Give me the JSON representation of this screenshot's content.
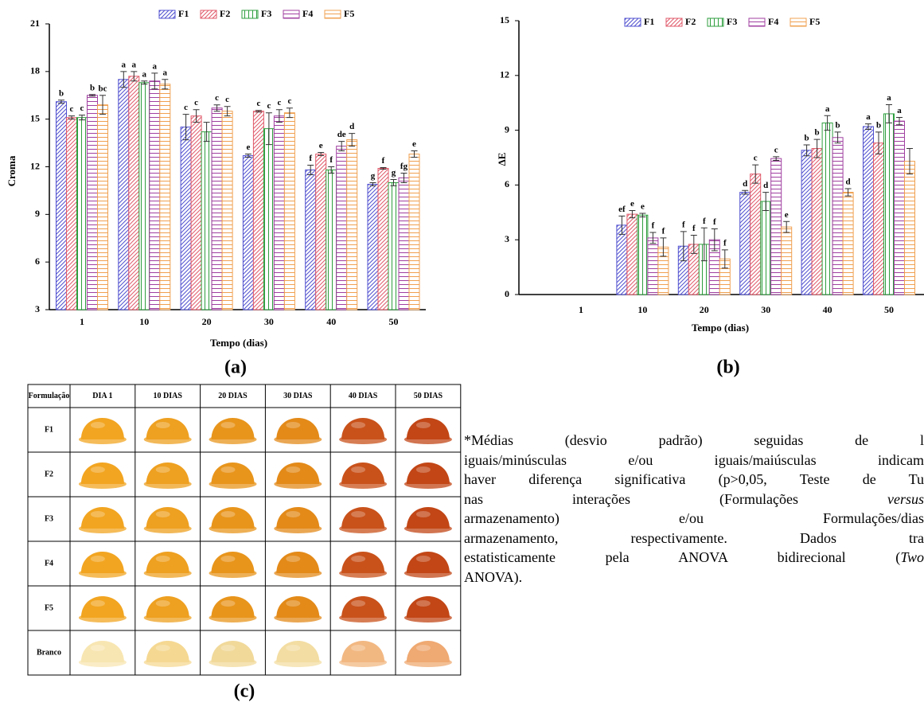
{
  "chart_data": [
    {
      "type": "bar",
      "panel_label": "(a)",
      "y_label": "Croma",
      "x_label": "Tempo (dias)",
      "categories": [
        "1",
        "10",
        "20",
        "30",
        "40",
        "50"
      ],
      "ylim": [
        3,
        21
      ],
      "yticks": [
        3,
        6,
        9,
        12,
        15,
        18,
        21
      ],
      "series": [
        {
          "name": "F1",
          "color": "#5050d0",
          "hatch": "diagonal",
          "values": [
            16.1,
            17.5,
            14.5,
            12.7,
            11.8,
            10.9
          ],
          "errors": [
            0.1,
            0.5,
            0.8,
            0.1,
            0.3,
            0.1
          ],
          "letters": [
            "b",
            "a",
            "c",
            "e",
            "f",
            "g"
          ]
        },
        {
          "name": "F2",
          "color": "#e05a6a",
          "hatch": "diagonal",
          "values": [
            15.1,
            17.7,
            15.2,
            15.5,
            12.8,
            11.9
          ],
          "errors": [
            0.1,
            0.3,
            0.4,
            0.05,
            0.1,
            0.05
          ],
          "letters": [
            "c",
            "a",
            "c",
            "c",
            "e",
            "f"
          ]
        },
        {
          "name": "F3",
          "color": "#2e9e3e",
          "hatch": "vertical",
          "values": [
            15.1,
            17.3,
            14.2,
            14.4,
            11.8,
            11.0
          ],
          "errors": [
            0.15,
            0.1,
            0.6,
            1.0,
            0.2,
            0.2
          ],
          "letters": [
            "c",
            "a",
            null,
            "c",
            "f",
            "g"
          ]
        },
        {
          "name": "F4",
          "color": "#a040a0",
          "hatch": "horizontal",
          "values": [
            16.5,
            17.4,
            15.7,
            15.2,
            13.3,
            11.3
          ],
          "errors": [
            0.05,
            0.5,
            0.2,
            0.4,
            0.3,
            0.3
          ],
          "letters": [
            "b",
            "a",
            "c",
            "c",
            "de",
            "fg"
          ]
        },
        {
          "name": "F5",
          "color": "#f0a050",
          "hatch": "horizontal",
          "values": [
            15.9,
            17.2,
            15.5,
            15.4,
            13.7,
            12.8
          ],
          "errors": [
            0.6,
            0.3,
            0.3,
            0.3,
            0.4,
            0.2
          ],
          "letters": [
            "bc",
            "a",
            "c",
            "c",
            "d",
            "e"
          ]
        }
      ]
    },
    {
      "type": "bar",
      "panel_label": "(b)",
      "y_label": "ΔE",
      "x_label": "Tempo (dias)",
      "categories": [
        "1",
        "10",
        "20",
        "30",
        "40",
        "50"
      ],
      "ylim": [
        0,
        15
      ],
      "yticks": [
        0,
        3,
        6,
        9,
        12,
        15
      ],
      "series": [
        {
          "name": "F1",
          "color": "#5050d0",
          "hatch": "diagonal",
          "values": [
            null,
            3.8,
            2.65,
            5.6,
            7.9,
            9.2
          ],
          "errors": [
            null,
            0.5,
            0.8,
            0.1,
            0.3,
            0.15
          ],
          "letters": [
            null,
            "ef",
            "f",
            "d",
            "b",
            "a"
          ]
        },
        {
          "name": "F2",
          "color": "#e05a6a",
          "hatch": "diagonal",
          "values": [
            null,
            4.4,
            2.75,
            6.6,
            8.0,
            8.3
          ],
          "errors": [
            null,
            0.2,
            0.5,
            0.5,
            0.5,
            0.6
          ],
          "letters": [
            null,
            "e",
            "f",
            "c",
            "b",
            "b"
          ]
        },
        {
          "name": "F3",
          "color": "#2e9e3e",
          "hatch": "vertical",
          "values": [
            null,
            4.35,
            2.75,
            5.1,
            9.4,
            9.9
          ],
          "errors": [
            null,
            0.1,
            0.9,
            0.5,
            0.4,
            0.5
          ],
          "letters": [
            null,
            "e",
            "f",
            "d",
            "a",
            "a"
          ]
        },
        {
          "name": "F4",
          "color": "#a040a0",
          "hatch": "horizontal",
          "values": [
            null,
            3.1,
            3.0,
            7.45,
            8.6,
            9.5
          ],
          "errors": [
            null,
            0.3,
            0.6,
            0.1,
            0.3,
            0.2
          ],
          "letters": [
            null,
            "f",
            "f",
            "c",
            "b",
            "a"
          ]
        },
        {
          "name": "F5",
          "color": "#f0a050",
          "hatch": "horizontal",
          "values": [
            null,
            2.6,
            1.95,
            3.7,
            5.6,
            7.3
          ],
          "errors": [
            null,
            0.5,
            0.5,
            0.3,
            0.2,
            0.7
          ],
          "letters": [
            null,
            "f",
            "f",
            "e",
            "d",
            null
          ]
        }
      ]
    }
  ],
  "table": {
    "label": "(c)",
    "header": [
      "Formulação",
      "DIA 1",
      "10 DIAS",
      "20 DIAS",
      "30 DIAS",
      "40 DIAS",
      "50 DIAS"
    ],
    "rows": [
      "F1",
      "F2",
      "F3",
      "F4",
      "F5",
      "Branco"
    ]
  },
  "note": {
    "lines": [
      [
        {
          "text": "*Médias (desvio padrão) seguidas de l"
        }
      ],
      [
        {
          "text": "iguais/minúsculas e/ou iguais/maiúsculas indicam"
        }
      ],
      [
        {
          "text": "haver diferença significativa (p>0,05, Teste de Tu"
        }
      ],
      [
        {
          "text": "nas interações (Formulações "
        },
        {
          "text": "versus",
          "italic": true
        }
      ],
      [
        {
          "text": "armazenamento) e/ou Formulações/dias"
        }
      ],
      [
        {
          "text": "armazenamento, respectivamente. Dados tra"
        }
      ],
      [
        {
          "text": "estatisticamente pela ANOVA bidirecional ("
        },
        {
          "text": "Two",
          "italic": true
        }
      ],
      [
        {
          "text": "ANOVA)."
        }
      ]
    ]
  }
}
